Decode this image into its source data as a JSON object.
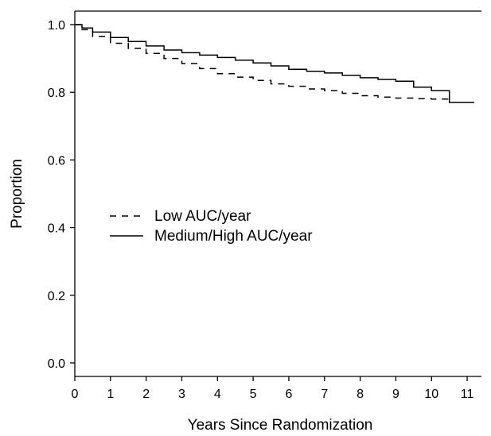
{
  "chart_data": {
    "type": "line",
    "title": "",
    "xlabel": "Years Since Randomization",
    "ylabel": "Proportion",
    "xlim": [
      0,
      11.4
    ],
    "ylim": [
      -0.04,
      1.04
    ],
    "x_ticks": [
      0,
      1,
      2,
      3,
      4,
      5,
      6,
      7,
      8,
      9,
      10,
      11
    ],
    "x_tick_labels": [
      "0",
      "1",
      "2",
      "3",
      "4",
      "5",
      "6",
      "7",
      "8",
      "9",
      "10",
      "11"
    ],
    "y_ticks": [
      0.0,
      0.2,
      0.4,
      0.6,
      0.8,
      1.0
    ],
    "y_tick_labels": [
      "0.0",
      "0.2",
      "0.4",
      "0.6",
      "0.8",
      "1.0"
    ],
    "grid": false,
    "legend_position": "center-left",
    "series": [
      {
        "name": "Low AUC/year",
        "style": "dashed",
        "color": "#000000",
        "x": [
          0,
          0.2,
          0.5,
          1.0,
          1.5,
          2.0,
          2.5,
          3.0,
          3.5,
          4.0,
          4.5,
          5.0,
          5.5,
          6.0,
          6.5,
          7.0,
          7.5,
          8.0,
          8.5,
          9.0,
          9.5,
          10.0,
          10.5
        ],
        "y": [
          1.0,
          0.985,
          0.965,
          0.945,
          0.93,
          0.915,
          0.9,
          0.885,
          0.87,
          0.855,
          0.845,
          0.835,
          0.825,
          0.818,
          0.81,
          0.805,
          0.797,
          0.79,
          0.786,
          0.783,
          0.781,
          0.78,
          0.78
        ]
      },
      {
        "name": "Medium/High AUC/year",
        "style": "solid",
        "color": "#000000",
        "x": [
          0,
          0.2,
          0.5,
          1.0,
          1.5,
          2.0,
          2.5,
          3.0,
          3.5,
          4.0,
          4.5,
          5.0,
          5.5,
          6.0,
          6.5,
          7.0,
          7.5,
          8.0,
          8.5,
          9.0,
          9.5,
          10.0,
          10.5,
          11.2
        ],
        "y": [
          1.0,
          0.99,
          0.978,
          0.962,
          0.95,
          0.937,
          0.925,
          0.917,
          0.91,
          0.903,
          0.895,
          0.887,
          0.878,
          0.868,
          0.862,
          0.857,
          0.85,
          0.843,
          0.838,
          0.833,
          0.815,
          0.805,
          0.77,
          0.77
        ]
      }
    ]
  }
}
